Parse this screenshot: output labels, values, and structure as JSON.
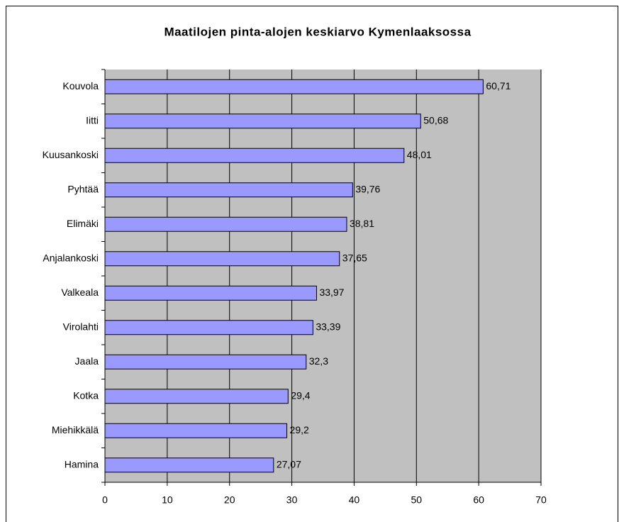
{
  "chart_data": {
    "type": "barh",
    "title": "Maatilojen pinta-alojen keskiarvo Kymenlaaksossa",
    "categories": [
      "Kouvola",
      "Iitti",
      "Kuusankoski",
      "Pyhtää",
      "Elimäki",
      "Anjalankoski",
      "Valkeala",
      "Virolahti",
      "Jaala",
      "Kotka",
      "Miehikkälä",
      "Hamina"
    ],
    "values": [
      60.71,
      50.68,
      48.01,
      39.76,
      38.81,
      37.65,
      33.97,
      33.39,
      32.3,
      29.4,
      29.2,
      27.07
    ],
    "value_labels": [
      "60,71",
      "50,68",
      "48,01",
      "39,76",
      "38,81",
      "37,65",
      "33,97",
      "33,39",
      "32,3",
      "29,4",
      "29,2",
      "27,07"
    ],
    "color": "#9999ff",
    "plot_background": "#c0c0c0",
    "xlim": [
      0,
      70
    ],
    "xticks": [
      0,
      10,
      20,
      30,
      40,
      50,
      60,
      70
    ],
    "grid": true
  }
}
